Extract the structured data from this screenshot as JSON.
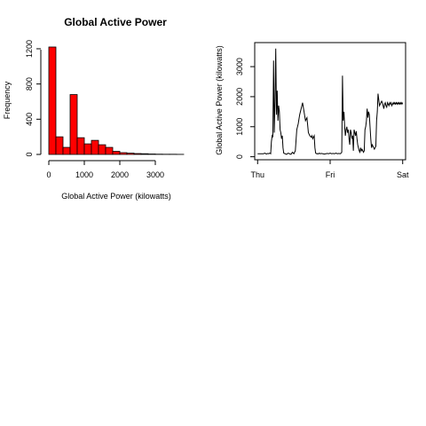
{
  "chart_data": [
    {
      "type": "bar",
      "title": "Global Active Power",
      "xlabel": "Global Active Power (kilowatts)",
      "ylabel": "Frequency",
      "bar_color": "#ff0000",
      "bin_edges": [
        0,
        200,
        400,
        600,
        800,
        1000,
        1200,
        1400,
        1600,
        1800,
        2000,
        2200,
        2400,
        2600,
        2800,
        3000,
        3200,
        3400,
        3600,
        3800
      ],
      "values": [
        1220,
        200,
        80,
        680,
        190,
        120,
        160,
        110,
        80,
        35,
        20,
        15,
        10,
        8,
        5,
        3,
        2,
        2,
        1
      ],
      "xlim": [
        0,
        3800
      ],
      "ylim": [
        0,
        1250
      ],
      "xticks": [
        0,
        1000,
        2000,
        3000
      ],
      "xtick_labels": [
        "0",
        "1000",
        "2000",
        "3000"
      ],
      "yticks": [
        0,
        400,
        800,
        1200
      ],
      "ytick_labels": [
        "0",
        "400",
        "800",
        "1200"
      ]
    },
    {
      "type": "line",
      "title": "",
      "xlabel": "",
      "ylabel": "Global Active Power (kilowatts)",
      "line_color": "#000000",
      "x": [
        0.0,
        0.08,
        0.1,
        0.12,
        0.14,
        0.15,
        0.16,
        0.17,
        0.18,
        0.19,
        0.2,
        0.21,
        0.22,
        0.23,
        0.24,
        0.25,
        0.26,
        0.27,
        0.28,
        0.29,
        0.3,
        0.31,
        0.32,
        0.33,
        0.34,
        0.35,
        0.36,
        0.38,
        0.4,
        0.42,
        0.44,
        0.46,
        0.48,
        0.5,
        0.52,
        0.54,
        0.56,
        0.58,
        0.6,
        0.62,
        0.64,
        0.66,
        0.68,
        0.7,
        0.72,
        0.74,
        0.75,
        0.76,
        0.77,
        0.78,
        0.79,
        0.8,
        0.81,
        0.82,
        0.83,
        0.84,
        0.85,
        0.86,
        0.88,
        0.9,
        0.92,
        0.94,
        0.96,
        0.98,
        1.0,
        1.02,
        1.04,
        1.06,
        1.08,
        1.1,
        1.12,
        1.14,
        1.15,
        1.16,
        1.17,
        1.18,
        1.19,
        1.2,
        1.21,
        1.22,
        1.23,
        1.24,
        1.25,
        1.26,
        1.27,
        1.28,
        1.29,
        1.3,
        1.31,
        1.32,
        1.33,
        1.34,
        1.35,
        1.36,
        1.37,
        1.38,
        1.39,
        1.4,
        1.41,
        1.42,
        1.43,
        1.44,
        1.45,
        1.46,
        1.47,
        1.48,
        1.49,
        1.5,
        1.51,
        1.52,
        1.53,
        1.54,
        1.55,
        1.56,
        1.57,
        1.58,
        1.59,
        1.6,
        1.61,
        1.62,
        1.63,
        1.64,
        1.65,
        1.66,
        1.67,
        1.68,
        1.69,
        1.7,
        1.71,
        1.72,
        1.73,
        1.74,
        1.75,
        1.76,
        1.77,
        1.78,
        1.79,
        1.8,
        1.81,
        1.82,
        1.83,
        1.84,
        1.85,
        1.86,
        1.87,
        1.88,
        1.89,
        1.9,
        1.91,
        1.92,
        1.93,
        1.94,
        1.95,
        1.96,
        1.97,
        1.98,
        1.99,
        2.0
      ],
      "y": [
        100,
        100,
        120,
        90,
        110,
        100,
        110,
        120,
        100,
        500,
        700,
        650,
        3200,
        800,
        1800,
        3600,
        1400,
        2200,
        1200,
        1700,
        1500,
        900,
        800,
        600,
        700,
        300,
        120,
        100,
        80,
        120,
        100,
        80,
        150,
        100,
        200,
        900,
        1100,
        1400,
        1600,
        1800,
        1500,
        1200,
        1300,
        800,
        700,
        650,
        700,
        600,
        650,
        700,
        300,
        120,
        100,
        110,
        90,
        100,
        120,
        100,
        110,
        100,
        90,
        100,
        110,
        100,
        120,
        100,
        110,
        100,
        120,
        100,
        110,
        100,
        120,
        150,
        2700,
        1200,
        1500,
        1000,
        700,
        900,
        1000,
        800,
        900,
        600,
        400,
        900,
        800,
        600,
        700,
        200,
        900,
        800,
        700,
        850,
        600,
        400,
        300,
        200,
        150,
        300,
        200,
        250,
        200,
        150,
        200,
        900,
        1000,
        1200,
        1600,
        1300,
        1500,
        1400,
        1000,
        600,
        300,
        400,
        350,
        300,
        250,
        300,
        350,
        1200,
        1500,
        2100,
        1900,
        1700,
        1750,
        1800,
        1850,
        1800,
        1700,
        1600,
        1750,
        1800,
        1700,
        1650,
        1800,
        1750,
        1700,
        1800,
        1750,
        1800,
        1700,
        1750,
        1800,
        1750,
        1800,
        1750,
        1800,
        1750,
        1800,
        1750,
        1800,
        1750,
        1800,
        1750,
        1800,
        1750
      ],
      "xlim": [
        -0.04,
        2.04
      ],
      "ylim": [
        -100,
        3800
      ],
      "xticks": [
        0,
        1,
        2
      ],
      "xtick_labels": [
        "Thu",
        "Fri",
        "Sat"
      ],
      "yticks": [
        0,
        1000,
        2000,
        3000
      ],
      "ytick_labels": [
        "0",
        "1000",
        "2000",
        "3000"
      ]
    }
  ]
}
